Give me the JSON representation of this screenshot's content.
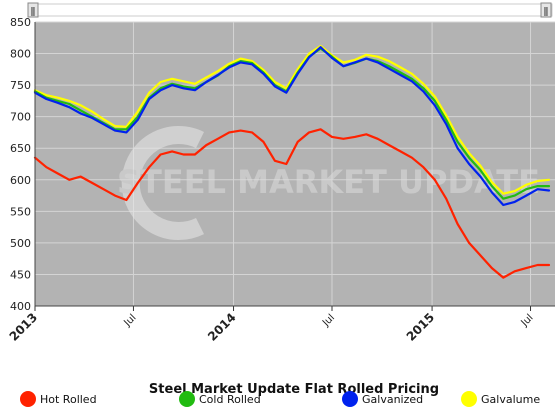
{
  "chart_data": {
    "type": "line",
    "title": "Steel Market Update Flat Rolled Pricing",
    "xlabel": "",
    "ylabel": "",
    "xlim": [
      "2013-01-01",
      "2015-08-15"
    ],
    "ylim": [
      400,
      850
    ],
    "y_ticks": [
      400,
      450,
      500,
      550,
      600,
      650,
      700,
      750,
      800,
      850
    ],
    "x_ticks": [
      {
        "date": "2013-01-01",
        "label": "2013",
        "major": true
      },
      {
        "date": "2013-07-01",
        "label": "Jul",
        "major": false
      },
      {
        "date": "2014-01-01",
        "label": "2014",
        "major": true
      },
      {
        "date": "2014-07-01",
        "label": "Jul",
        "major": false
      },
      {
        "date": "2015-01-01",
        "label": "2015",
        "major": true
      },
      {
        "date": "2015-07-01",
        "label": "Jul",
        "major": false
      }
    ],
    "grid": true,
    "legend_position": "bottom",
    "plot_background": "#b3b3b3",
    "watermark": "STEEL MARKET UPDATE",
    "series": [
      {
        "name": "Hot Rolled",
        "color": "#ff2200",
        "points": [
          [
            "2013-01-01",
            635
          ],
          [
            "2013-01-22",
            620
          ],
          [
            "2013-02-12",
            610
          ],
          [
            "2013-03-05",
            600
          ],
          [
            "2013-03-26",
            605
          ],
          [
            "2013-04-16",
            595
          ],
          [
            "2013-05-07",
            585
          ],
          [
            "2013-05-28",
            575
          ],
          [
            "2013-06-18",
            568
          ],
          [
            "2013-07-09",
            595
          ],
          [
            "2013-07-30",
            620
          ],
          [
            "2013-08-20",
            640
          ],
          [
            "2013-09-10",
            645
          ],
          [
            "2013-10-01",
            640
          ],
          [
            "2013-10-22",
            640
          ],
          [
            "2013-11-12",
            655
          ],
          [
            "2013-12-03",
            665
          ],
          [
            "2013-12-24",
            675
          ],
          [
            "2014-01-14",
            678
          ],
          [
            "2014-02-04",
            675
          ],
          [
            "2014-02-25",
            660
          ],
          [
            "2014-03-18",
            630
          ],
          [
            "2014-04-08",
            625
          ],
          [
            "2014-04-29",
            660
          ],
          [
            "2014-05-20",
            675
          ],
          [
            "2014-06-10",
            680
          ],
          [
            "2014-07-01",
            668
          ],
          [
            "2014-07-22",
            665
          ],
          [
            "2014-08-12",
            668
          ],
          [
            "2014-09-02",
            672
          ],
          [
            "2014-09-23",
            665
          ],
          [
            "2014-10-14",
            655
          ],
          [
            "2014-11-04",
            645
          ],
          [
            "2014-11-25",
            635
          ],
          [
            "2014-12-16",
            620
          ],
          [
            "2015-01-06",
            600
          ],
          [
            "2015-01-27",
            570
          ],
          [
            "2015-02-17",
            530
          ],
          [
            "2015-03-10",
            500
          ],
          [
            "2015-03-31",
            480
          ],
          [
            "2015-04-21",
            460
          ],
          [
            "2015-05-12",
            445
          ],
          [
            "2015-06-02",
            455
          ],
          [
            "2015-06-23",
            460
          ],
          [
            "2015-07-14",
            465
          ],
          [
            "2015-08-04",
            465
          ]
        ]
      },
      {
        "name": "Cold Rolled",
        "color": "#22bb11",
        "points": [
          [
            "2013-01-01",
            740
          ],
          [
            "2013-01-22",
            730
          ],
          [
            "2013-02-12",
            725
          ],
          [
            "2013-03-05",
            720
          ],
          [
            "2013-03-26",
            710
          ],
          [
            "2013-04-16",
            700
          ],
          [
            "2013-05-07",
            690
          ],
          [
            "2013-05-28",
            680
          ],
          [
            "2013-06-18",
            680
          ],
          [
            "2013-07-09",
            700
          ],
          [
            "2013-07-30",
            730
          ],
          [
            "2013-08-20",
            745
          ],
          [
            "2013-09-10",
            752
          ],
          [
            "2013-10-01",
            748
          ],
          [
            "2013-10-22",
            745
          ],
          [
            "2013-11-12",
            755
          ],
          [
            "2013-12-03",
            765
          ],
          [
            "2013-12-24",
            780
          ],
          [
            "2014-01-14",
            788
          ],
          [
            "2014-02-04",
            785
          ],
          [
            "2014-02-25",
            770
          ],
          [
            "2014-03-18",
            750
          ],
          [
            "2014-04-08",
            740
          ],
          [
            "2014-04-29",
            770
          ],
          [
            "2014-05-20",
            795
          ],
          [
            "2014-06-10",
            808
          ],
          [
            "2014-07-01",
            795
          ],
          [
            "2014-07-22",
            780
          ],
          [
            "2014-08-12",
            785
          ],
          [
            "2014-09-02",
            792
          ],
          [
            "2014-09-23",
            788
          ],
          [
            "2014-10-14",
            780
          ],
          [
            "2014-11-04",
            770
          ],
          [
            "2014-11-25",
            760
          ],
          [
            "2014-12-16",
            745
          ],
          [
            "2015-01-06",
            725
          ],
          [
            "2015-01-27",
            695
          ],
          [
            "2015-02-17",
            660
          ],
          [
            "2015-03-10",
            635
          ],
          [
            "2015-03-31",
            615
          ],
          [
            "2015-04-21",
            590
          ],
          [
            "2015-05-12",
            570
          ],
          [
            "2015-06-02",
            575
          ],
          [
            "2015-06-23",
            585
          ],
          [
            "2015-07-14",
            590
          ],
          [
            "2015-08-04",
            590
          ]
        ]
      },
      {
        "name": "Galvanized",
        "color": "#0022ee",
        "points": [
          [
            "2013-01-01",
            738
          ],
          [
            "2013-01-22",
            728
          ],
          [
            "2013-02-12",
            722
          ],
          [
            "2013-03-05",
            715
          ],
          [
            "2013-03-26",
            705
          ],
          [
            "2013-04-16",
            698
          ],
          [
            "2013-05-07",
            688
          ],
          [
            "2013-05-28",
            678
          ],
          [
            "2013-06-18",
            675
          ],
          [
            "2013-07-09",
            695
          ],
          [
            "2013-07-30",
            728
          ],
          [
            "2013-08-20",
            742
          ],
          [
            "2013-09-10",
            750
          ],
          [
            "2013-10-01",
            745
          ],
          [
            "2013-10-22",
            742
          ],
          [
            "2013-11-12",
            755
          ],
          [
            "2013-12-03",
            766
          ],
          [
            "2013-12-24",
            778
          ],
          [
            "2014-01-14",
            786
          ],
          [
            "2014-02-04",
            783
          ],
          [
            "2014-02-25",
            768
          ],
          [
            "2014-03-18",
            748
          ],
          [
            "2014-04-08",
            738
          ],
          [
            "2014-04-29",
            768
          ],
          [
            "2014-05-20",
            794
          ],
          [
            "2014-06-10",
            810
          ],
          [
            "2014-07-01",
            793
          ],
          [
            "2014-07-22",
            780
          ],
          [
            "2014-08-12",
            786
          ],
          [
            "2014-09-02",
            792
          ],
          [
            "2014-09-23",
            786
          ],
          [
            "2014-10-14",
            776
          ],
          [
            "2014-11-04",
            766
          ],
          [
            "2014-11-25",
            756
          ],
          [
            "2014-12-16",
            740
          ],
          [
            "2015-01-06",
            718
          ],
          [
            "2015-01-27",
            688
          ],
          [
            "2015-02-17",
            650
          ],
          [
            "2015-03-10",
            625
          ],
          [
            "2015-03-31",
            605
          ],
          [
            "2015-04-21",
            580
          ],
          [
            "2015-05-12",
            560
          ],
          [
            "2015-06-02",
            565
          ],
          [
            "2015-06-23",
            575
          ],
          [
            "2015-07-14",
            585
          ],
          [
            "2015-08-04",
            583
          ]
        ]
      },
      {
        "name": "Galvalume",
        "color": "#ffff00",
        "points": [
          [
            "2013-01-01",
            742
          ],
          [
            "2013-01-22",
            734
          ],
          [
            "2013-02-12",
            730
          ],
          [
            "2013-03-05",
            725
          ],
          [
            "2013-03-26",
            718
          ],
          [
            "2013-04-16",
            708
          ],
          [
            "2013-05-07",
            696
          ],
          [
            "2013-05-28",
            685
          ],
          [
            "2013-06-18",
            684
          ],
          [
            "2013-07-09",
            708
          ],
          [
            "2013-07-30",
            738
          ],
          [
            "2013-08-20",
            755
          ],
          [
            "2013-09-10",
            760
          ],
          [
            "2013-10-01",
            756
          ],
          [
            "2013-10-22",
            752
          ],
          [
            "2013-11-12",
            762
          ],
          [
            "2013-12-03",
            772
          ],
          [
            "2013-12-24",
            784
          ],
          [
            "2014-01-14",
            792
          ],
          [
            "2014-02-04",
            788
          ],
          [
            "2014-02-25",
            774
          ],
          [
            "2014-03-18",
            755
          ],
          [
            "2014-04-08",
            745
          ],
          [
            "2014-04-29",
            775
          ],
          [
            "2014-05-20",
            800
          ],
          [
            "2014-06-10",
            812
          ],
          [
            "2014-07-01",
            797
          ],
          [
            "2014-07-22",
            786
          ],
          [
            "2014-08-12",
            790
          ],
          [
            "2014-09-02",
            798
          ],
          [
            "2014-09-23",
            795
          ],
          [
            "2014-10-14",
            788
          ],
          [
            "2014-11-04",
            778
          ],
          [
            "2014-11-25",
            768
          ],
          [
            "2014-12-16",
            752
          ],
          [
            "2015-01-06",
            732
          ],
          [
            "2015-01-27",
            702
          ],
          [
            "2015-02-17",
            668
          ],
          [
            "2015-03-10",
            642
          ],
          [
            "2015-03-31",
            622
          ],
          [
            "2015-04-21",
            596
          ],
          [
            "2015-05-12",
            578
          ],
          [
            "2015-06-02",
            582
          ],
          [
            "2015-06-23",
            592
          ],
          [
            "2015-07-14",
            598
          ],
          [
            "2015-08-04",
            600
          ]
        ]
      }
    ]
  },
  "ui": {
    "scroll_left_glyph": "ǁ",
    "scroll_right_glyph": "ǁ"
  }
}
